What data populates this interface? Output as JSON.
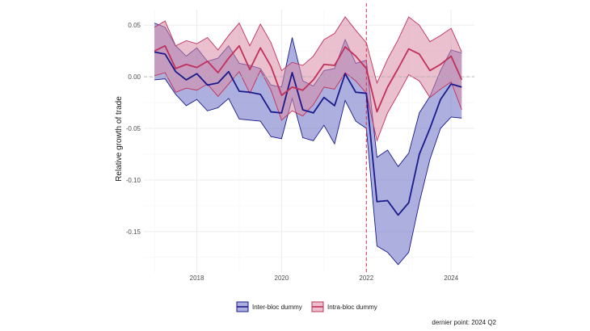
{
  "chart_data": {
    "type": "line",
    "title": "",
    "xlabel": "",
    "ylabel": "Relative growth of trade",
    "caption": "dernier point: 2024 Q2",
    "xlim": [
      2016.75,
      2024.55
    ],
    "ylim": [
      -0.19,
      0.065
    ],
    "x_ticks": [
      2018,
      2020,
      2022,
      2024
    ],
    "x_tick_labels": [
      "2018",
      "2020",
      "2022",
      "2024"
    ],
    "y_ticks": [
      -0.15,
      -0.1,
      -0.05,
      0.0,
      0.05
    ],
    "y_tick_labels": [
      "-0.15",
      "-0.10",
      "-0.05",
      "0.00",
      "0.05"
    ],
    "vline": {
      "x": 2022.0,
      "color": "#d6304f"
    },
    "hline": {
      "y": 0.0
    },
    "grid": true,
    "legend_position": "bottom",
    "x": [
      2017.0,
      2017.25,
      2017.5,
      2017.75,
      2018.0,
      2018.25,
      2018.5,
      2018.75,
      2019.0,
      2019.25,
      2019.5,
      2019.75,
      2020.0,
      2020.25,
      2020.5,
      2020.75,
      2021.0,
      2021.25,
      2021.5,
      2021.75,
      2022.0,
      2022.25,
      2022.5,
      2022.75,
      2023.0,
      2023.25,
      2023.5,
      2023.75,
      2024.0,
      2024.25
    ],
    "series": [
      {
        "name": "Inter-bloc dummy",
        "line_color": "#1a1a8c",
        "fill_color": "#6a6fc4",
        "values": [
          0.024,
          0.022,
          0.005,
          -0.003,
          0.003,
          -0.008,
          -0.006,
          0.005,
          -0.014,
          -0.015,
          -0.017,
          -0.034,
          -0.035,
          0.004,
          -0.032,
          -0.035,
          -0.02,
          -0.028,
          0.003,
          -0.015,
          -0.016,
          -0.121,
          -0.12,
          -0.134,
          -0.122,
          -0.075,
          -0.05,
          -0.022,
          -0.007,
          -0.01
        ],
        "lower": [
          -0.003,
          -0.002,
          -0.017,
          -0.028,
          -0.022,
          -0.033,
          -0.03,
          -0.021,
          -0.041,
          -0.042,
          -0.043,
          -0.058,
          -0.06,
          -0.021,
          -0.059,
          -0.062,
          -0.047,
          -0.065,
          -0.023,
          -0.043,
          -0.05,
          -0.164,
          -0.17,
          -0.182,
          -0.17,
          -0.122,
          -0.08,
          -0.05,
          -0.039,
          -0.04
        ],
        "upper": [
          0.052,
          0.048,
          0.03,
          0.02,
          0.028,
          0.015,
          0.018,
          0.03,
          0.013,
          0.011,
          0.008,
          -0.008,
          -0.01,
          0.038,
          -0.004,
          -0.009,
          0.006,
          0.008,
          0.036,
          0.013,
          0.016,
          -0.078,
          -0.071,
          -0.087,
          -0.074,
          -0.035,
          -0.019,
          0.006,
          0.026,
          0.023
        ]
      },
      {
        "name": "Intra-bloc dummy",
        "line_color": "#c2305a",
        "fill_color": "#d98aa6",
        "values": [
          0.025,
          0.03,
          0.008,
          0.012,
          0.009,
          0.015,
          0.004,
          0.018,
          0.03,
          0.007,
          0.028,
          0.01,
          -0.018,
          -0.01,
          -0.013,
          -0.003,
          0.012,
          0.011,
          0.029,
          0.02,
          0.008,
          -0.034,
          -0.01,
          0.008,
          0.027,
          0.022,
          0.006,
          0.012,
          0.02,
          -0.003
        ],
        "lower": [
          0.001,
          0.004,
          -0.015,
          -0.011,
          -0.013,
          -0.007,
          -0.019,
          -0.007,
          0.005,
          -0.016,
          0.006,
          -0.013,
          -0.042,
          -0.033,
          -0.038,
          -0.027,
          -0.01,
          -0.012,
          0.004,
          -0.004,
          -0.016,
          -0.062,
          -0.035,
          -0.017,
          0.002,
          -0.004,
          -0.02,
          -0.012,
          -0.005,
          -0.032
        ],
        "upper": [
          0.048,
          0.054,
          0.03,
          0.035,
          0.032,
          0.038,
          0.026,
          0.04,
          0.052,
          0.03,
          0.051,
          0.033,
          0.006,
          0.014,
          0.011,
          0.02,
          0.036,
          0.042,
          0.058,
          0.045,
          0.033,
          -0.006,
          0.017,
          0.036,
          0.058,
          0.05,
          0.034,
          0.04,
          0.047,
          0.024
        ]
      }
    ]
  }
}
